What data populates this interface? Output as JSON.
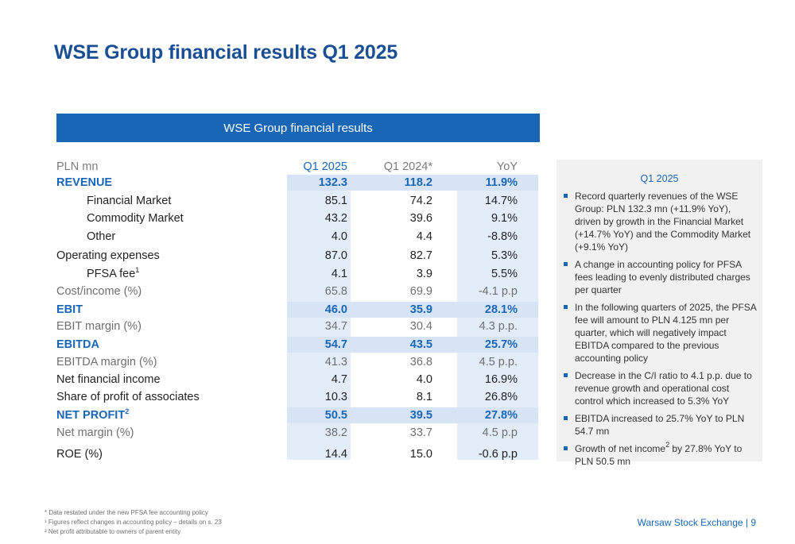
{
  "title": "WSE Group financial results Q1 2025",
  "table": {
    "caption": "WSE Group financial results",
    "columns": {
      "label": "PLN mn",
      "q1_2025": "Q1 2025",
      "q1_2024": "Q1 2024*",
      "yoy": "YoY"
    },
    "rows": [
      {
        "label": "REVENUE",
        "q1_2025": "132.3",
        "q1_2024": "118.2",
        "yoy": "11.9%",
        "style": "bold"
      },
      {
        "label": "Financial Market",
        "q1_2025": "85.1",
        "q1_2024": "74.2",
        "yoy": "14.7%",
        "style": "indent"
      },
      {
        "label": "Commodity Market",
        "q1_2025": "43.2",
        "q1_2024": "39.6",
        "yoy": "9.1%",
        "style": "indent"
      },
      {
        "label": "Other",
        "q1_2025": "4.0",
        "q1_2024": "4.4",
        "yoy": "-8.8%",
        "style": "indent"
      },
      {
        "label": "Operating expenses",
        "q1_2025": "87.0",
        "q1_2024": "82.7",
        "yoy": "5.3%",
        "style": "normal"
      },
      {
        "label": "PFSA fee",
        "sup": "1",
        "q1_2025": "4.1",
        "q1_2024": "3.9",
        "yoy": "5.5%",
        "style": "indent"
      },
      {
        "label": "Cost/income (%)",
        "q1_2025": "65.8",
        "q1_2024": "69.9",
        "yoy": "-4.1 p.p",
        "style": "grey"
      },
      {
        "label": "EBIT",
        "q1_2025": "46.0",
        "q1_2024": "35.9",
        "yoy": "28.1%",
        "style": "bold"
      },
      {
        "label": "EBIT margin (%)",
        "q1_2025": "34.7",
        "q1_2024": "30.4",
        "yoy": "4.3 p.p.",
        "style": "grey"
      },
      {
        "label": "EBITDA",
        "q1_2025": "54.7",
        "q1_2024": "43.5",
        "yoy": "25.7%",
        "style": "bold"
      },
      {
        "label": "EBITDA margin (%)",
        "q1_2025": "41.3",
        "q1_2024": "36.8",
        "yoy": "4.5 p.p.",
        "style": "grey"
      },
      {
        "label": "Net financial income",
        "q1_2025": "4.7",
        "q1_2024": "4.0",
        "yoy": "16.9%",
        "style": "normal"
      },
      {
        "label": "Share of profit of associates",
        "q1_2025": "10.3",
        "q1_2024": "8.1",
        "yoy": "26.8%",
        "style": "normal"
      },
      {
        "label": "NET PROFIT",
        "sup": "2",
        "q1_2025": "50.5",
        "q1_2024": "39.5",
        "yoy": "27.8%",
        "style": "bold"
      },
      {
        "label": "Net margin (%)",
        "q1_2025": "38.2",
        "q1_2024": "33.7",
        "yoy": "4.5 p.p",
        "style": "grey"
      },
      {
        "label": "ROE (%)",
        "q1_2025": "14.4",
        "q1_2024": "15.0",
        "yoy": "-0.6 p.p",
        "style": "normal"
      }
    ]
  },
  "side_panel": {
    "title": "Q1 2025",
    "bullets": [
      "Record quarterly revenues of the WSE Group: PLN 132.3 mn (+11.9% YoY), driven by growth in the Financial Market (+14.7% YoY) and the Commodity Market (+9.1% YoY)",
      "A change in accounting policy for PFSA fees leading to evenly distributed charges per quarter",
      "In the following quarters of 2025, the PFSA fee will amount to PLN 4.125 mn per quarter, which will negatively impact EBITDA compared to the previous accounting policy",
      "Decrease in the C/I ratio to 4.1 p.p. due to revenue growth and operational cost control which increased to 5.3% YoY",
      "EBITDA increased to 25.7% YoY to PLN 54.7 mn",
      {
        "before": "Growth of net income",
        "sup": "2",
        "after": " by 27.8% YoY to PLN 50.5 mn"
      }
    ],
    "bullet_icon": "square-bullet-icon"
  },
  "footnotes": [
    "* Data restated under the new PFSA fee accounting policy",
    "¹ Figures reflect changes in accounting policy – details on s. 23",
    "² Net profit attributable to owners of parent entity"
  ],
  "footer": {
    "brand": "Warsaw Stock Exchange | 9"
  },
  "colors": {
    "accent": "#1966b7",
    "title": "#1b4f93",
    "column_highlight": "#e3edf9",
    "panel_bg": "#f1f1f1"
  }
}
